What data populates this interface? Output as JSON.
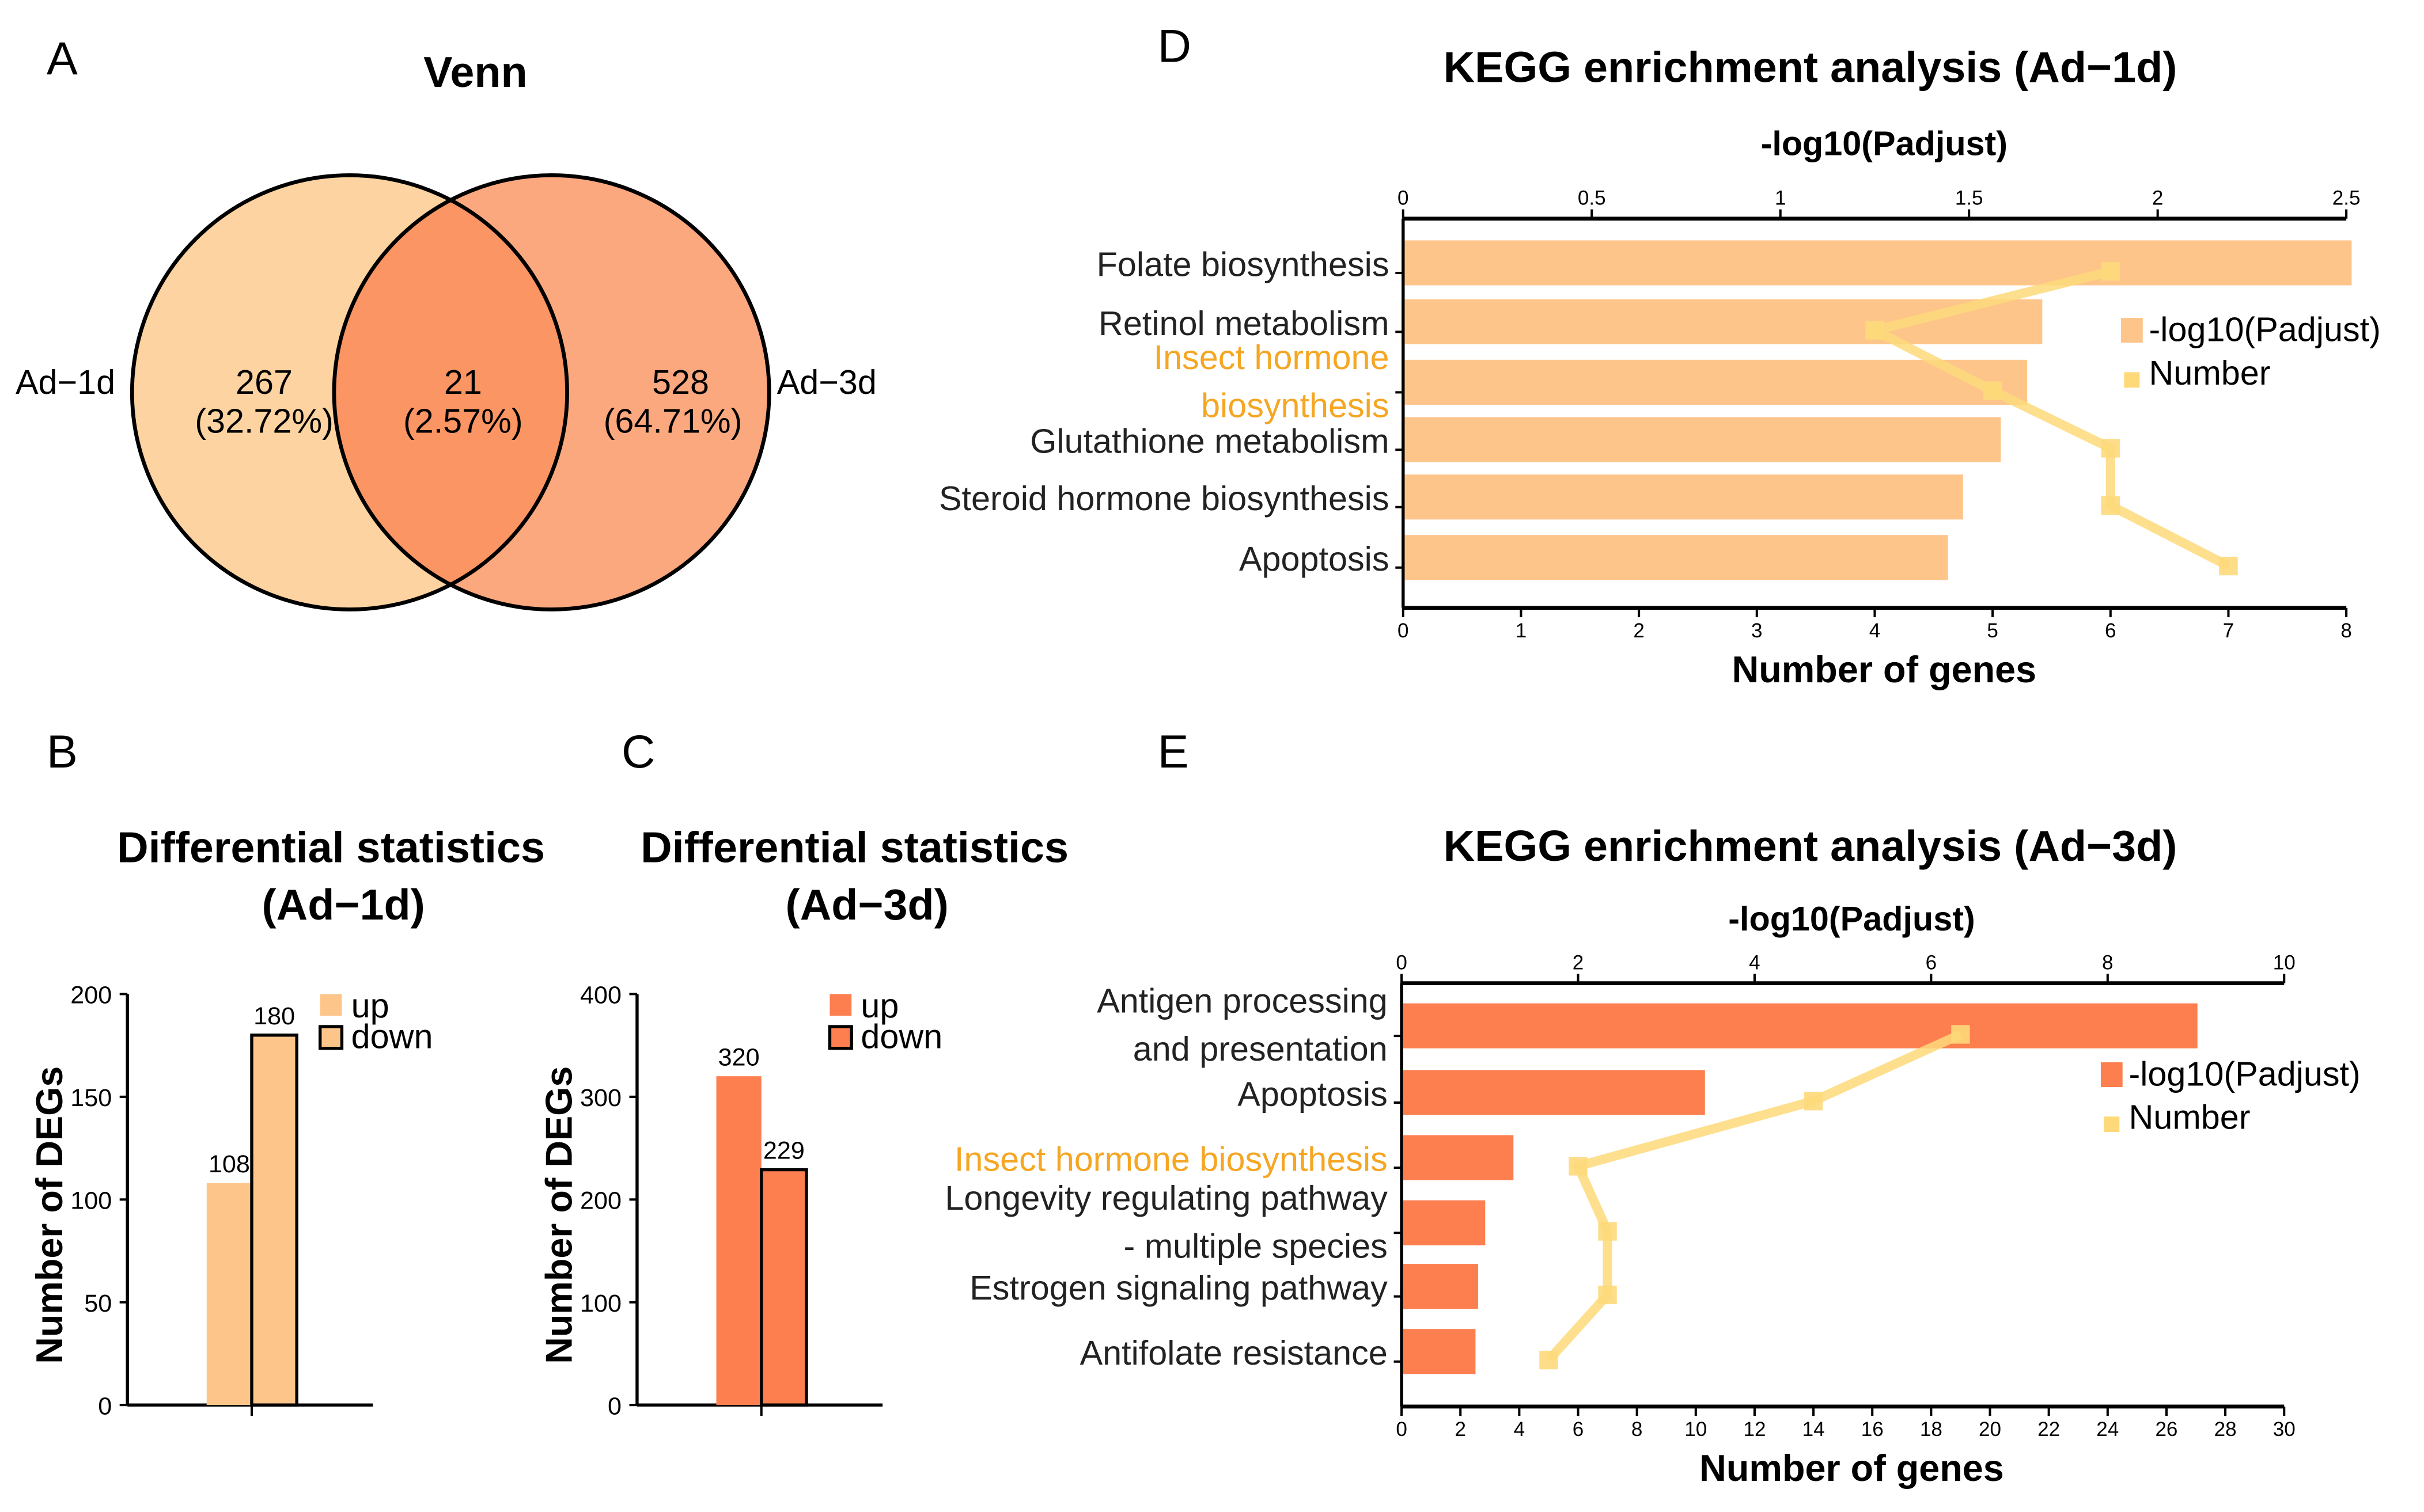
{
  "panel_labels": {
    "a": "A",
    "b": "B",
    "c": "C",
    "d": "D",
    "e": "E"
  },
  "colors": {
    "light_orange": "#fec58a",
    "venn_left": "#fdd3a1",
    "venn_right": "#fca87f",
    "venn_overlap": "#fb9563",
    "dark_orange": "#fd7f4f",
    "number_line": "#fdd97a",
    "highlight_text": "#f5a623"
  },
  "chart_data": [
    {
      "type": "venn",
      "title": "Venn",
      "sets": [
        {
          "name": "Ad−1d",
          "only": "267",
          "pct": "(32.72%)"
        },
        {
          "name": "Ad−3d",
          "only": "528",
          "pct": "(64.71%)"
        }
      ],
      "overlap": {
        "count": "21",
        "pct": "(2.57%)"
      }
    },
    {
      "type": "bar",
      "title": [
        "Differential statistics",
        "(Ad−1d)"
      ],
      "ylabel": "Number of DEGs",
      "ylim": [
        0,
        200
      ],
      "yticks": [
        "0",
        "50",
        "100",
        "150",
        "200"
      ],
      "categories": [
        "up",
        "down"
      ],
      "values": [
        108,
        180
      ],
      "labels": [
        "108",
        "180"
      ],
      "legend": [
        "up",
        "down"
      ]
    },
    {
      "type": "bar",
      "title": [
        "Differential statistics",
        "(Ad−3d)"
      ],
      "ylabel": "Number of DEGs",
      "ylim": [
        0,
        400
      ],
      "yticks": [
        "0",
        "100",
        "200",
        "300",
        "400"
      ],
      "categories": [
        "up",
        "down"
      ],
      "values": [
        320,
        229
      ],
      "labels": [
        "320",
        "229"
      ],
      "legend": [
        "up",
        "down"
      ]
    },
    {
      "type": "bar+line",
      "title": "KEGG enrichment analysis (Ad−1d)",
      "top_axis_label": "-log10(Padjust)",
      "xlabel": "Number of genes",
      "top_xlim": [
        0,
        2.5
      ],
      "top_ticks": [
        "0",
        "0.5",
        "1",
        "1.5",
        "2",
        "2.5"
      ],
      "bottom_xlim": [
        0,
        8
      ],
      "bottom_ticks": [
        "0",
        "1",
        "2",
        "3",
        "4",
        "5",
        "6",
        "7",
        "8"
      ],
      "categories": [
        {
          "lines": [
            "Folate biosynthesis"
          ],
          "highlight": false
        },
        {
          "lines": [
            "Retinol metabolism"
          ],
          "highlight": false
        },
        {
          "lines": [
            "Insect hormone",
            "biosynthesis"
          ],
          "highlight": true
        },
        {
          "lines": [
            "Glutathione metabolism"
          ],
          "highlight": false
        },
        {
          "lines": [
            "Steroid hormone biosynthesis"
          ],
          "highlight": false
        },
        {
          "lines": [
            "Apoptosis"
          ],
          "highlight": false
        }
      ],
      "neg_log10_padjust": [
        2.51,
        1.69,
        1.65,
        1.58,
        1.48,
        1.44
      ],
      "number_of_genes": [
        6,
        4,
        5,
        6,
        6,
        7
      ],
      "legend": [
        "-log10(Padjust)",
        "Number"
      ]
    },
    {
      "type": "bar+line",
      "title": "KEGG enrichment analysis (Ad−3d)",
      "top_axis_label": "-log10(Padjust)",
      "xlabel": "Number of genes",
      "top_xlim": [
        0,
        10
      ],
      "top_ticks": [
        "0",
        "2",
        "4",
        "6",
        "8",
        "10"
      ],
      "bottom_xlim": [
        0,
        30
      ],
      "bottom_ticks": [
        "0",
        "2",
        "4",
        "6",
        "8",
        "10",
        "12",
        "14",
        "16",
        "18",
        "20",
        "22",
        "24",
        "26",
        "28",
        "30"
      ],
      "categories": [
        {
          "lines": [
            "Antigen processing",
            "and presentation"
          ],
          "highlight": false
        },
        {
          "lines": [
            "Apoptosis"
          ],
          "highlight": false
        },
        {
          "lines": [
            "Insect hormone biosynthesis"
          ],
          "highlight": true
        },
        {
          "lines": [
            "Longevity regulating pathway",
            "- multiple species"
          ],
          "highlight": false
        },
        {
          "lines": [
            "Estrogen signaling pathway"
          ],
          "highlight": false
        },
        {
          "lines": [
            "Antifolate resistance"
          ],
          "highlight": false
        }
      ],
      "neg_log10_padjust": [
        9.0,
        3.42,
        1.25,
        0.93,
        0.85,
        0.82
      ],
      "number_of_genes": [
        19,
        14,
        6,
        7,
        7,
        5
      ],
      "legend": [
        "-log10(Padjust)",
        "Number"
      ]
    }
  ]
}
